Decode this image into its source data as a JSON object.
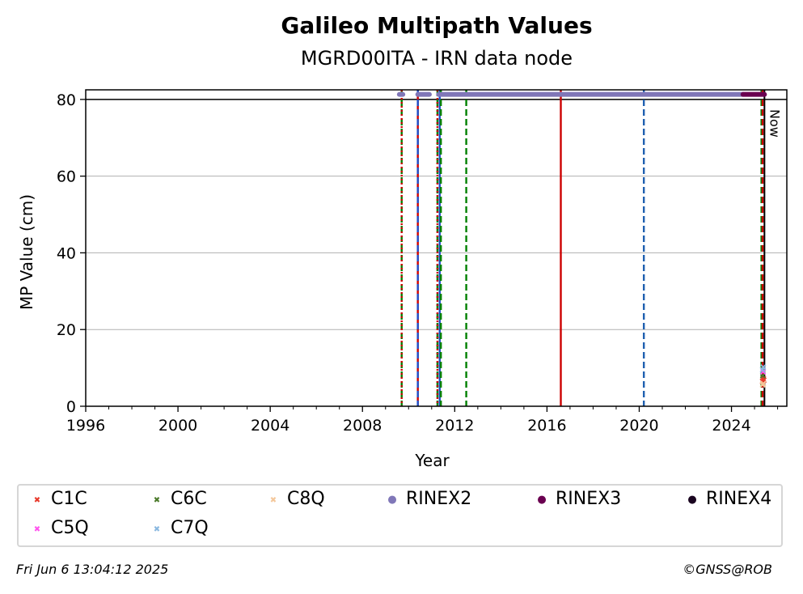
{
  "chart_data": {
    "type": "scatter",
    "title": "Galileo Multipath Values",
    "subtitle": "MGRD00ITA - IRN data node",
    "xlabel": "Year",
    "ylabel": "MP Value (cm)",
    "xlim": [
      1996,
      2026.4
    ],
    "ylim": [
      0,
      82.5
    ],
    "x_ticks": [
      1996,
      2000,
      2004,
      2008,
      2012,
      2016,
      2020,
      2024
    ],
    "y_ticks": [
      0,
      20,
      40,
      60,
      80
    ],
    "grid": "horizontal",
    "threshold_line": 80,
    "now_label": "Now",
    "now_year": 2025.43,
    "vertical_lines": [
      {
        "x": 2009.7,
        "color": "#008000",
        "style": "dashed"
      },
      {
        "x": 2009.7,
        "color": "#cc0000",
        "style": "dotted"
      },
      {
        "x": 2010.4,
        "color": "#cc0000",
        "style": "solid"
      },
      {
        "x": 2010.4,
        "color": "#1f4fc8",
        "style": "dashed"
      },
      {
        "x": 2011.25,
        "color": "#008000",
        "style": "dashed"
      },
      {
        "x": 2011.25,
        "color": "#cc0000",
        "style": "dotted"
      },
      {
        "x": 2011.35,
        "color": "#1f4fc8",
        "style": "solid"
      },
      {
        "x": 2011.4,
        "color": "#008000",
        "style": "dashed"
      },
      {
        "x": 2012.5,
        "color": "#008000",
        "style": "dashed"
      },
      {
        "x": 2016.6,
        "color": "#cc0000",
        "style": "solid"
      },
      {
        "x": 2020.2,
        "color": "#1f60b0",
        "style": "dashed"
      },
      {
        "x": 2025.3,
        "color": "#008000",
        "style": "dashed"
      },
      {
        "x": 2025.35,
        "color": "#cc0000",
        "style": "dashed"
      }
    ],
    "series": [
      {
        "name": "C1C",
        "marker": "x",
        "color": "#e8392b",
        "points": [
          [
            2025.35,
            6.5
          ],
          [
            2025.38,
            7.2
          ],
          [
            2025.4,
            6.8
          ]
        ]
      },
      {
        "name": "C6C",
        "marker": "x",
        "color": "#4a7a2a",
        "points": [
          [
            2025.36,
            8.0
          ]
        ]
      },
      {
        "name": "C8Q",
        "marker": "x",
        "color": "#f4c79a",
        "points": [
          [
            2025.35,
            5.6
          ],
          [
            2025.38,
            5.9
          ]
        ]
      },
      {
        "name": "RINEX2",
        "marker": "dot",
        "color": "#8077b8",
        "ranges": [
          [
            2009.6,
            2009.75
          ],
          [
            2010.4,
            2010.9
          ],
          [
            2011.3,
            2024.5
          ]
        ],
        "y": 81.3
      },
      {
        "name": "RINEX3",
        "marker": "dot",
        "color": "#6a0050",
        "ranges": [
          [
            2024.5,
            2025.43
          ]
        ],
        "y": 81.3
      },
      {
        "name": "RINEX4",
        "marker": "dot",
        "color": "#1a0520",
        "ranges": [],
        "y": 81.3
      },
      {
        "name": "C5Q",
        "marker": "x",
        "color": "#ff55ee",
        "points": [
          [
            2025.37,
            9.0
          ]
        ]
      },
      {
        "name": "C7Q",
        "marker": "x",
        "color": "#8ab8e0",
        "points": [
          [
            2025.35,
            9.5
          ],
          [
            2025.38,
            10.2
          ]
        ]
      }
    ]
  },
  "footer": {
    "timestamp": "Fri Jun  6 13:04:12 2025",
    "credit": "©GNSS@ROB"
  }
}
